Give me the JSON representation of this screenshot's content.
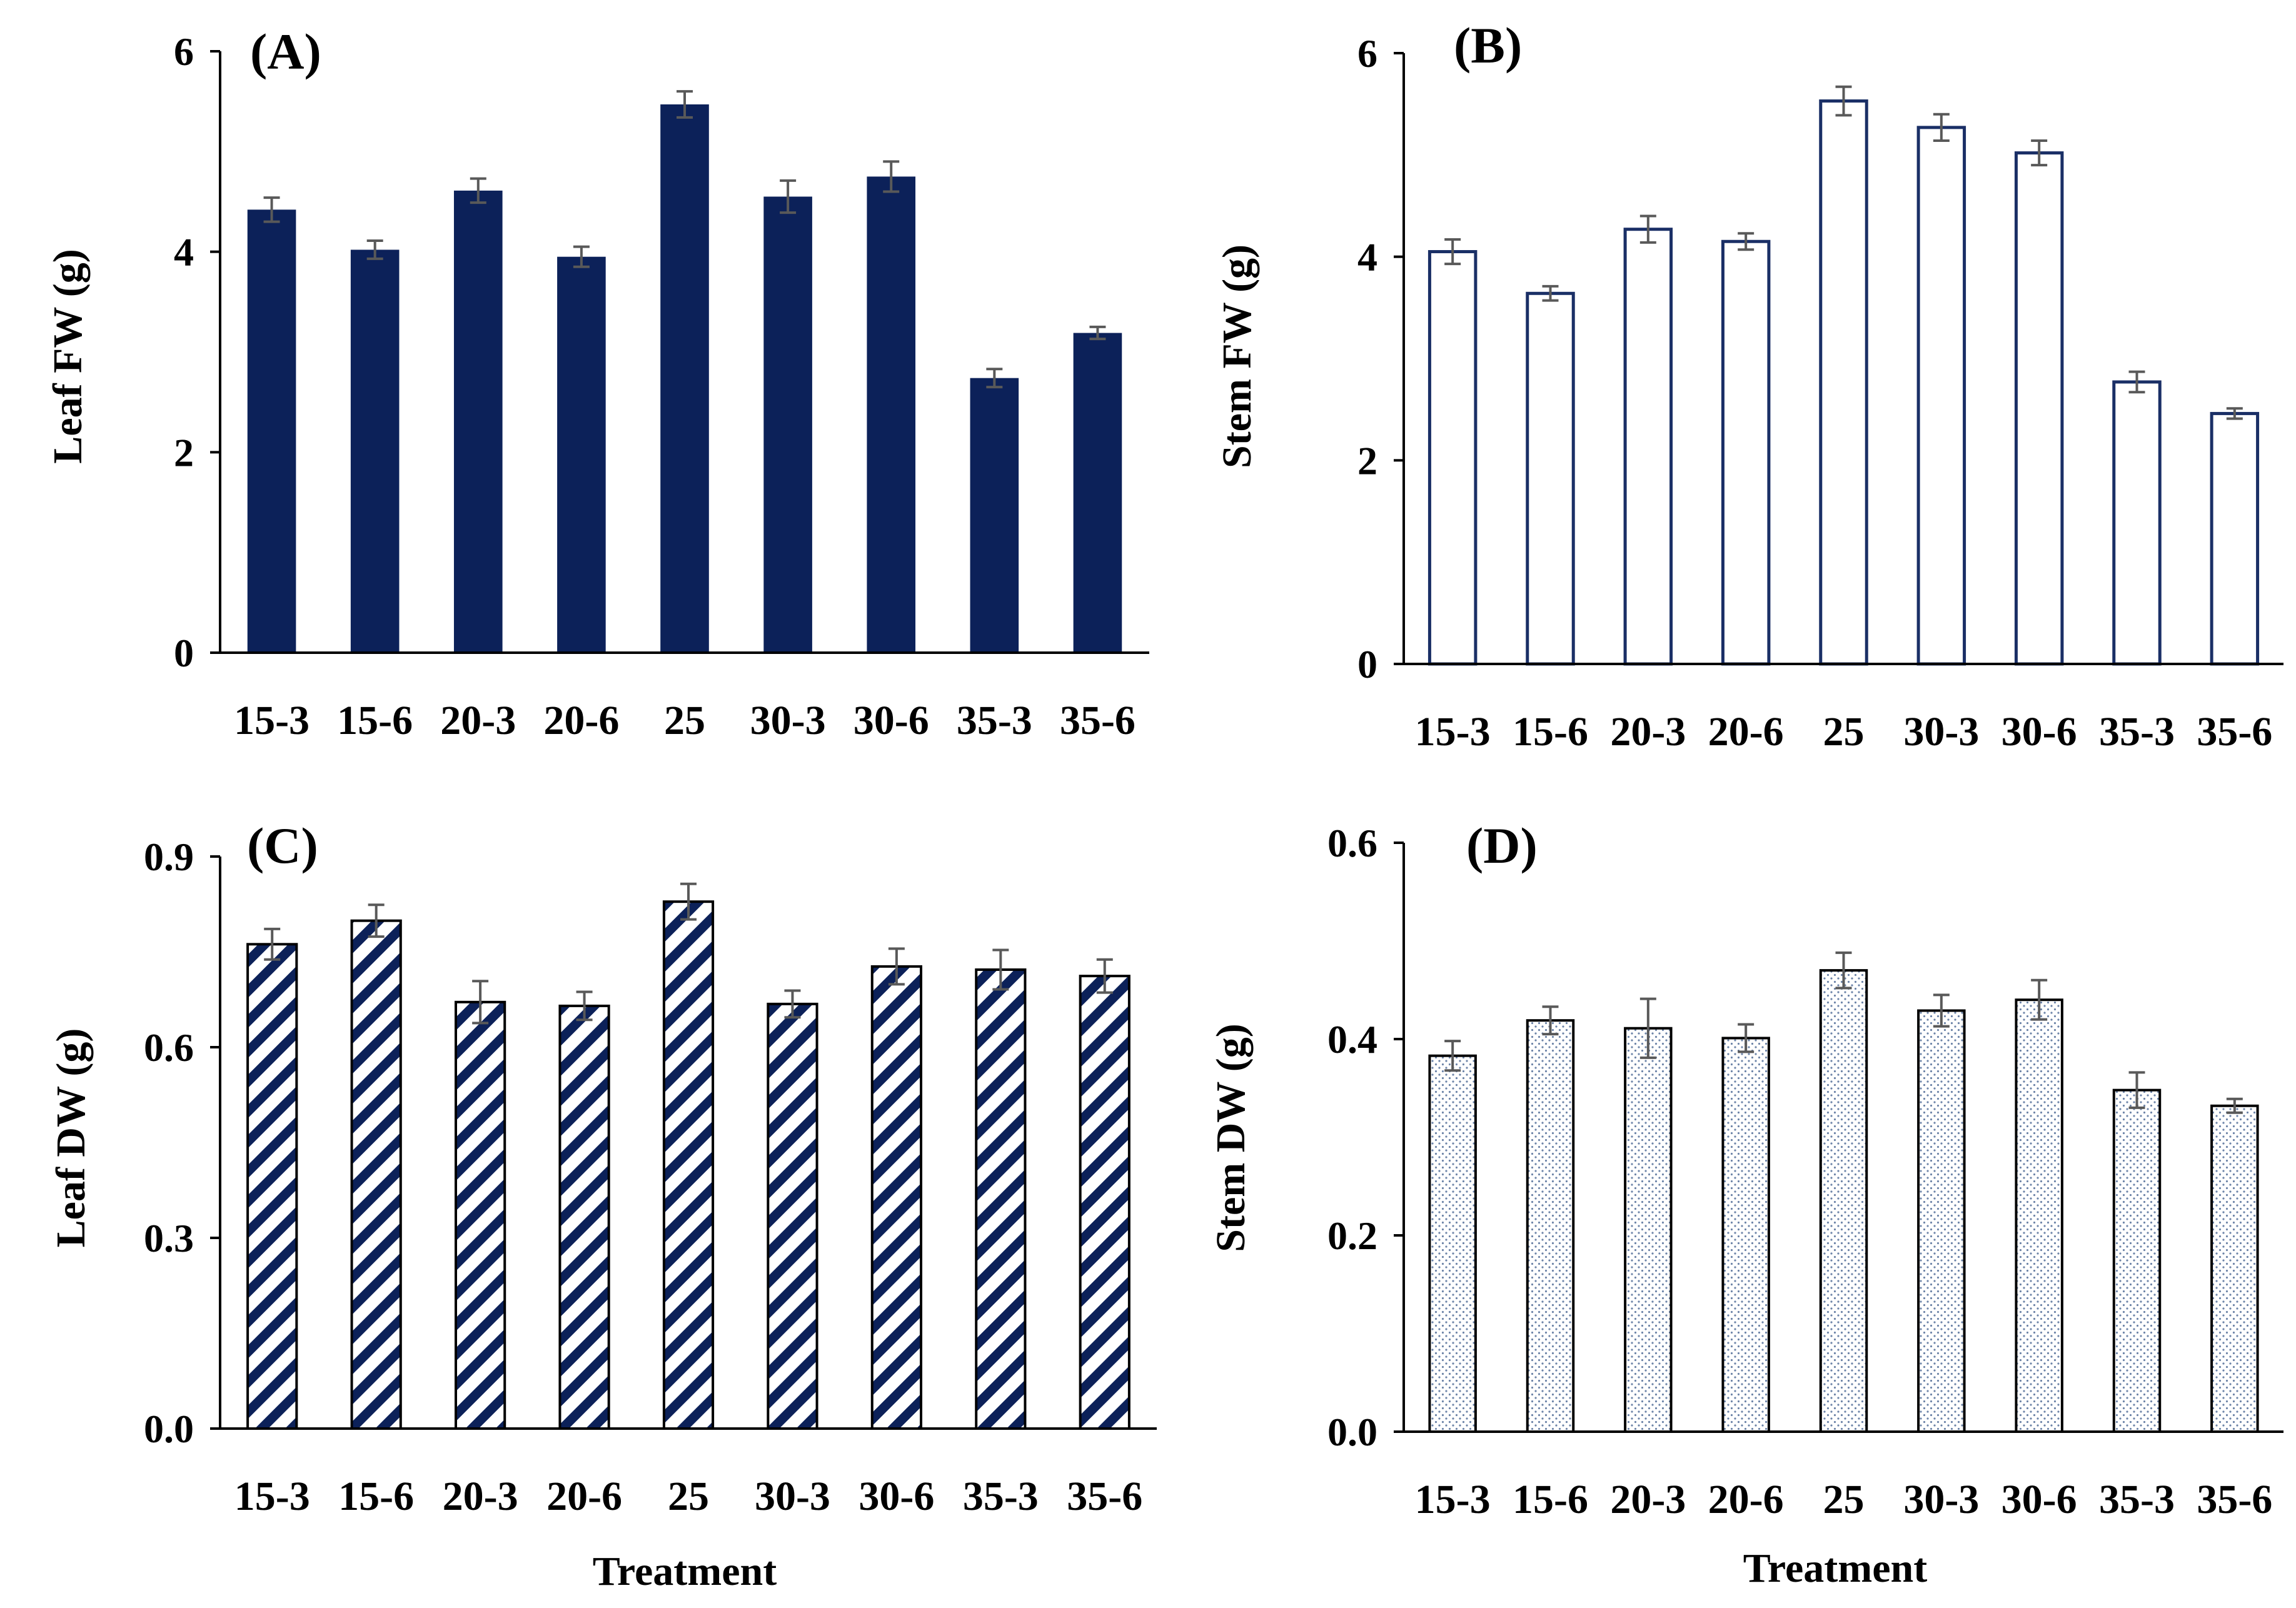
{
  "colors": {
    "bar_dark": "#0c2159",
    "bar_outline": "#1a2f66",
    "error_bar": "#595959",
    "axis": "#000000"
  },
  "chart_data": [
    {
      "panel_label": "(A)",
      "type": "bar",
      "style": "solid",
      "categories": [
        "15-3",
        "15-6",
        "20-3",
        "20-6",
        "25",
        "30-3",
        "30-6",
        "35-3",
        "35-6"
      ],
      "values": [
        4.42,
        4.02,
        4.61,
        3.95,
        5.47,
        4.55,
        4.75,
        2.74,
        3.19
      ],
      "errors": [
        0.12,
        0.09,
        0.12,
        0.1,
        0.13,
        0.16,
        0.15,
        0.09,
        0.06
      ],
      "ylabel": "Leaf FW (g)",
      "xlabel": "",
      "ylim": [
        0,
        6
      ],
      "yticks": [
        "0",
        "2",
        "4",
        "6"
      ]
    },
    {
      "panel_label": "(B)",
      "type": "bar",
      "style": "open",
      "categories": [
        "15-3",
        "15-6",
        "20-3",
        "20-6",
        "25",
        "30-3",
        "30-6",
        "35-3",
        "35-6"
      ],
      "values": [
        4.05,
        3.64,
        4.27,
        4.15,
        5.53,
        5.27,
        5.02,
        2.77,
        2.46
      ],
      "errors": [
        0.12,
        0.07,
        0.13,
        0.08,
        0.14,
        0.13,
        0.12,
        0.1,
        0.05
      ],
      "ylabel": "Stem FW (g)",
      "xlabel": "",
      "ylim": [
        0,
        6
      ],
      "yticks": [
        "0",
        "2",
        "4",
        "6"
      ]
    },
    {
      "panel_label": "(C)",
      "type": "bar",
      "style": "hatched",
      "categories": [
        "15-3",
        "15-6",
        "20-3",
        "20-6",
        "25",
        "30-3",
        "30-6",
        "35-3",
        "35-6"
      ],
      "values": [
        0.762,
        0.799,
        0.671,
        0.665,
        0.829,
        0.668,
        0.727,
        0.722,
        0.712
      ],
      "errors": [
        0.024,
        0.025,
        0.033,
        0.022,
        0.028,
        0.021,
        0.028,
        0.031,
        0.026
      ],
      "ylabel": "Leaf DW (g)",
      "xlabel": "Treatment",
      "ylim": [
        0,
        0.9
      ],
      "yticks": [
        "0.0",
        "0.3",
        "0.6",
        "0.9"
      ]
    },
    {
      "panel_label": "(D)",
      "type": "bar",
      "style": "dotted",
      "categories": [
        "15-3",
        "15-6",
        "20-3",
        "20-6",
        "25",
        "30-3",
        "30-6",
        "35-3",
        "35-6"
      ],
      "values": [
        0.383,
        0.419,
        0.411,
        0.401,
        0.47,
        0.429,
        0.44,
        0.348,
        0.332
      ],
      "errors": [
        0.015,
        0.014,
        0.03,
        0.014,
        0.018,
        0.016,
        0.02,
        0.018,
        0.007
      ],
      "ylabel": "Stem DW (g)",
      "xlabel": "Treatment",
      "ylim": [
        0,
        0.6
      ],
      "yticks": [
        "0.0",
        "0.2",
        "0.4",
        "0.6"
      ]
    }
  ]
}
